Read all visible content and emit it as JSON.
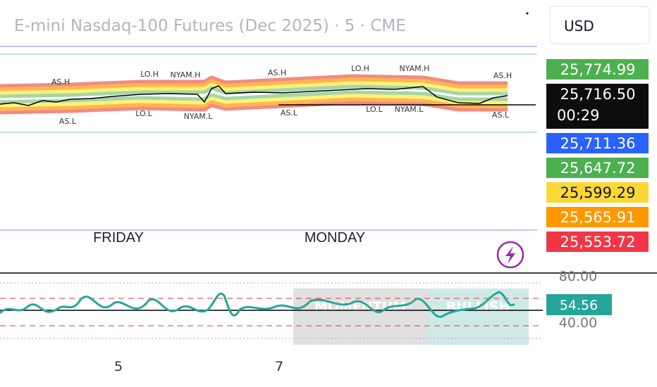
{
  "header": {
    "title": "E-mini Nasdaq-100 Futures (Dec 2025) · 5 · CME",
    "currency": "USD"
  },
  "price_labels": [
    {
      "text": "25,774.99",
      "color": "#4caf50"
    },
    {
      "text": "25,716.50",
      "time": "00:29",
      "color": "#0d0d0d"
    },
    {
      "text": "25,711.36",
      "color": "#2962ff"
    },
    {
      "text": "25,647.72",
      "color": "#4caf50"
    },
    {
      "text": "25,599.29",
      "color": "#fdd835"
    },
    {
      "text": "25,565.91",
      "color": "#ff9800"
    },
    {
      "text": "25,553.72",
      "color": "#f23645"
    }
  ],
  "session_labels": [
    "AS.H",
    "LO.H",
    "NYAM.H",
    "AS.H",
    "LO.H",
    "NYAM.H",
    "AS.H",
    "AS.L",
    "LO.L",
    "NYAM.L",
    "AS.L",
    "LO.L",
    "NYAM.L",
    "AS.L"
  ],
  "day_labels": [
    "FRIDAY",
    "MONDAY"
  ],
  "oscillator": {
    "levels": [
      "80.00",
      "40.00"
    ],
    "value": "54.56",
    "table": [
      "MOMENTUM",
      "BULLISH"
    ]
  },
  "x_axis": [
    "5",
    "7"
  ]
}
